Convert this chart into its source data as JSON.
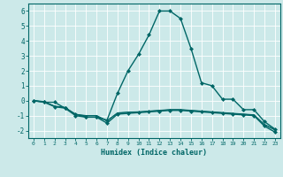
{
  "xlabel": "Humidex (Indice chaleur)",
  "xlim": [
    -0.5,
    23.5
  ],
  "ylim": [
    -2.5,
    6.5
  ],
  "yticks": [
    -2,
    -1,
    0,
    1,
    2,
    3,
    4,
    5,
    6
  ],
  "xticks": [
    0,
    1,
    2,
    3,
    4,
    5,
    6,
    7,
    8,
    9,
    10,
    11,
    12,
    13,
    14,
    15,
    16,
    17,
    18,
    19,
    20,
    21,
    22,
    23
  ],
  "bg_color": "#cce9e9",
  "grid_color": "#ffffff",
  "line_color": "#006666",
  "series": [
    [
      0,
      -0.1,
      -0.1,
      -0.5,
      -0.9,
      -1.1,
      -1.1,
      -1.3,
      0.5,
      2.0,
      3.1,
      4.4,
      6.0,
      6.0,
      5.5,
      3.5,
      1.2,
      1.0,
      0.1,
      0.1,
      -0.6,
      -0.6,
      -1.4,
      -1.9
    ],
    [
      0,
      -0.1,
      -0.4,
      -0.5,
      -1.0,
      -1.1,
      -1.1,
      -1.5,
      -0.9,
      -0.85,
      -0.8,
      -0.75,
      -0.7,
      -0.65,
      -0.65,
      -0.7,
      -0.75,
      -0.8,
      -0.85,
      -0.9,
      -0.95,
      -1.0,
      -1.7,
      -2.1
    ],
    [
      0,
      -0.05,
      -0.38,
      -0.46,
      -0.93,
      -1.01,
      -1.01,
      -1.36,
      -0.83,
      -0.78,
      -0.76,
      -0.71,
      -0.66,
      -0.61,
      -0.61,
      -0.66,
      -0.71,
      -0.76,
      -0.81,
      -0.86,
      -0.91,
      -0.96,
      -1.62,
      -1.96
    ],
    [
      0,
      -0.05,
      -0.36,
      -0.44,
      -0.91,
      -0.99,
      -0.99,
      -1.33,
      -0.81,
      -0.76,
      -0.74,
      -0.69,
      -0.64,
      -0.59,
      -0.59,
      -0.64,
      -0.69,
      -0.74,
      -0.79,
      -0.84,
      -0.89,
      -0.94,
      -1.58,
      -1.93
    ]
  ],
  "linewidths": [
    1.0,
    1.0,
    0.7,
    0.7
  ],
  "markers": [
    "D",
    "D",
    null,
    null
  ],
  "marker_size": 2.0
}
